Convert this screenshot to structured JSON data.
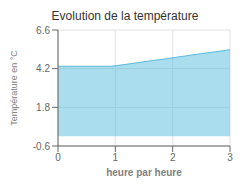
{
  "chart_data": {
    "type": "area",
    "title": "Evolution de la température",
    "xlabel": "heure par heure",
    "ylabel": "Température en °C",
    "x": [
      0.0,
      0.083,
      0.167,
      0.25,
      0.333,
      0.417,
      0.5,
      0.583,
      0.667,
      0.75,
      0.833,
      0.917,
      1.0,
      1.083,
      1.167,
      1.25,
      1.333,
      1.417,
      1.5,
      1.583,
      1.667,
      1.75,
      1.833,
      1.917,
      2.0,
      2.083,
      2.167,
      2.25,
      2.333,
      2.417,
      2.5,
      2.583,
      2.667,
      2.75,
      2.833,
      2.917,
      3.0
    ],
    "values": [
      4.35,
      4.35,
      4.35,
      4.35,
      4.35,
      4.35,
      4.35,
      4.35,
      4.35,
      4.35,
      4.35,
      4.35,
      4.38,
      4.42,
      4.46,
      4.5,
      4.54,
      4.58,
      4.63,
      4.67,
      4.71,
      4.75,
      4.79,
      4.83,
      4.88,
      4.92,
      4.96,
      5.0,
      5.05,
      5.09,
      5.13,
      5.17,
      5.21,
      5.25,
      5.29,
      5.33,
      5.38
    ],
    "color": "#55bbdd",
    "xlim": [
      0,
      3
    ],
    "ylim": [
      -0.6,
      6.6
    ],
    "xticks": [
      0,
      1,
      2,
      3
    ],
    "yticks": [
      -0.6,
      1.8,
      4.2,
      6.6
    ],
    "grid": true
  }
}
